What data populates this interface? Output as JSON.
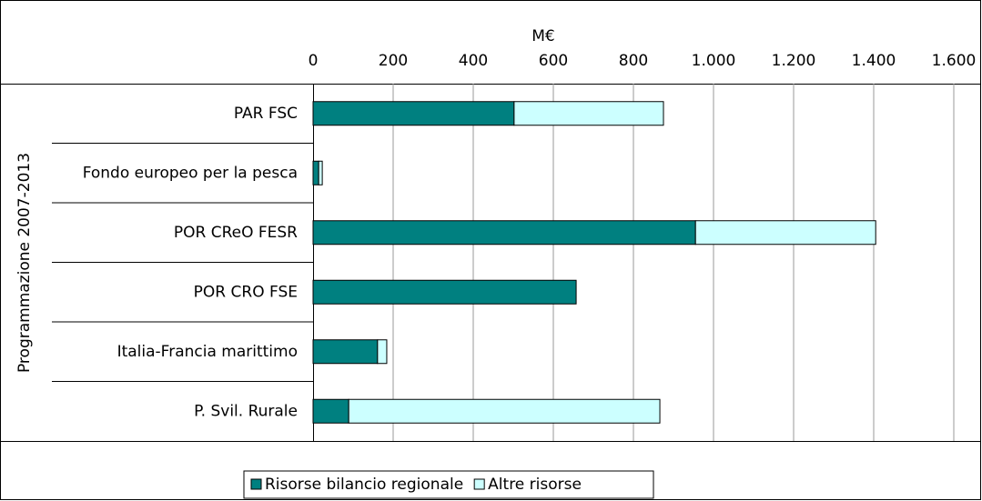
{
  "chart_data": {
    "type": "stacked_barh",
    "axis_label": "M€",
    "group_label": "Programmazione 2007-2013",
    "categories": [
      "PAR FSC",
      "Fondo europeo per la pesca",
      "POR CReO FESR",
      "POR CRO FSE",
      "Italia-Francia marittimo",
      "P. Svil. Rurale"
    ],
    "series": [
      {
        "name": "Risorse bilancio regionale",
        "color": "#008080",
        "values": [
          502,
          14,
          955,
          657,
          161,
          89
        ]
      },
      {
        "name": "Altre risorse",
        "color": "#ccffff",
        "values": [
          373,
          9,
          450,
          0,
          23,
          777
        ]
      }
    ],
    "xlim": [
      0,
      1600
    ],
    "xticks": [
      0,
      200,
      400,
      600,
      800,
      {
        "value": 1000,
        "label": "1.000"
      },
      {
        "value": 1200,
        "label": "1.200"
      },
      {
        "value": 1400,
        "label": "1.400"
      },
      {
        "value": 1600,
        "label": "1.600"
      }
    ],
    "grid": true,
    "legend": "bottom"
  }
}
